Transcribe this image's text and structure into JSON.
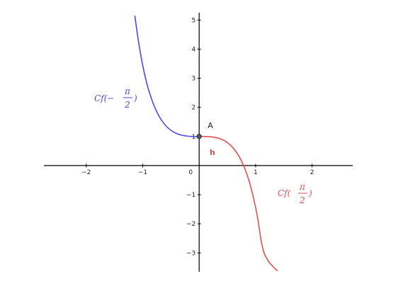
{
  "chart_data": {
    "type": "line",
    "xlim": [
      -2.75,
      2.72
    ],
    "ylim": [
      -3.65,
      5.25
    ],
    "grid": false,
    "x_ticks": [
      -2,
      -1,
      0,
      1,
      2
    ],
    "y_ticks": [
      -3,
      -2,
      -1,
      1,
      2,
      3,
      4,
      5
    ],
    "series": [
      {
        "name": "Cf(-π/2)",
        "color": "#4a4ae8",
        "x": [
          -1.14,
          -1.1,
          -1.05,
          -1.0,
          -0.95,
          -0.9,
          -0.8,
          -0.7,
          -0.6,
          -0.5,
          -0.4,
          -0.3,
          -0.2,
          -0.1,
          0.0
        ],
        "y": [
          5.15,
          4.6,
          3.97,
          3.44,
          3.0,
          2.63,
          2.06,
          1.66,
          1.39,
          1.21,
          1.1,
          1.04,
          1.01,
          1.0,
          1.0
        ]
      },
      {
        "name": "Cf(π/2)",
        "color": "#e05050",
        "x": [
          0.0,
          0.1,
          0.2,
          0.3,
          0.4,
          0.5,
          0.6,
          0.7,
          0.8,
          0.9,
          1.0,
          1.05,
          1.1,
          1.15,
          1.2,
          1.25,
          1.3,
          1.35,
          1.39
        ],
        "y": [
          1.0,
          1.0,
          0.99,
          0.96,
          0.9,
          0.79,
          0.61,
          0.34,
          -0.06,
          -0.63,
          -1.44,
          -1.97,
          -2.6,
          -3.0,
          -3.2,
          -3.35,
          -3.45,
          -3.55,
          -3.62
        ]
      }
    ],
    "points": [
      {
        "label": "A",
        "x": 0,
        "y": 1
      }
    ],
    "annotations": {
      "h": "h",
      "cf_neg_pre": "Cf(−",
      "cf_pos_pre": "Cf(",
      "pi": "π",
      "two": "2",
      "close": ")"
    },
    "colors": {
      "axis": "#000000",
      "blue": "#4a4ae8",
      "red": "#e05050",
      "point": "#555555"
    }
  }
}
